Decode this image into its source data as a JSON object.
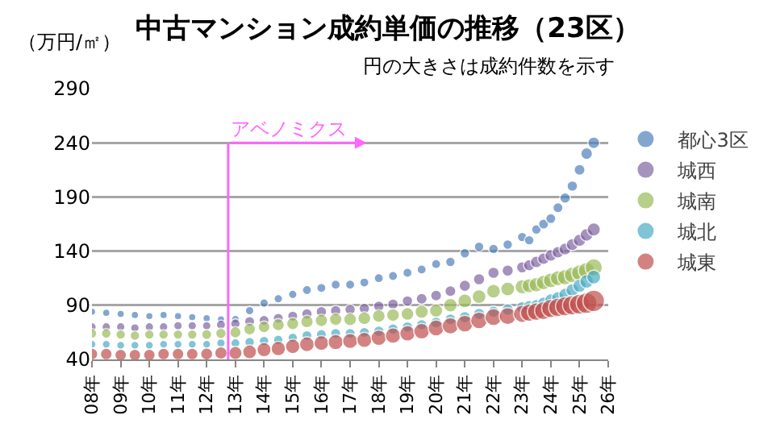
{
  "chart_data": {
    "type": "bubble",
    "title": "中古マンション成約単価の推移（23区）",
    "ylabel": "（万円/㎡）",
    "annotations": [
      "円の大きさは成約件数を示す"
    ],
    "x": [
      "2008-01",
      "2008-07",
      "2009-01",
      "2009-07",
      "2010-01",
      "2010-07",
      "2011-01",
      "2011-07",
      "2012-01",
      "2012-07",
      "2013-01",
      "2013-07",
      "2014-01",
      "2014-07",
      "2015-01",
      "2015-07",
      "2016-01",
      "2016-07",
      "2017-01",
      "2017-07",
      "2018-01",
      "2018-07",
      "2019-01",
      "2019-07",
      "2020-01",
      "2020-07",
      "2021-01",
      "2021-07",
      "2022-01",
      "2022-07",
      "2023-01",
      "2023-04",
      "2023-07",
      "2023-10",
      "2024-01",
      "2024-04",
      "2024-07",
      "2024-10",
      "2025-01",
      "2025-04",
      "2025-07"
    ],
    "series": [
      {
        "name": "都心3区",
        "color": "#4f81bd",
        "values": [
          84,
          83,
          82,
          81,
          80,
          81,
          80,
          79,
          78,
          77,
          77,
          85,
          92,
          96,
          100,
          104,
          106,
          109,
          109,
          111,
          115,
          117,
          120,
          123,
          128,
          130,
          138,
          144,
          142,
          146,
          153,
          150,
          160,
          165,
          170,
          180,
          189,
          200,
          215,
          230,
          240
        ],
        "sizes": [
          0.12,
          0.12,
          0.12,
          0.12,
          0.12,
          0.12,
          0.12,
          0.12,
          0.12,
          0.12,
          0.14,
          0.16,
          0.16,
          0.16,
          0.16,
          0.18,
          0.18,
          0.18,
          0.18,
          0.18,
          0.18,
          0.18,
          0.18,
          0.18,
          0.18,
          0.2,
          0.2,
          0.2,
          0.2,
          0.2,
          0.2,
          0.2,
          0.2,
          0.22,
          0.22,
          0.22,
          0.24,
          0.24,
          0.26,
          0.3,
          0.3
        ]
      },
      {
        "name": "城西",
        "color": "#8064a2",
        "values": [
          70,
          70,
          70,
          69,
          70,
          70,
          71,
          71,
          71,
          72,
          73,
          75,
          76,
          78,
          80,
          82,
          84,
          85,
          86,
          87,
          89,
          91,
          94,
          96,
          99,
          103,
          108,
          114,
          120,
          122,
          125,
          127,
          130,
          133,
          136,
          139,
          142,
          146,
          150,
          155,
          160
        ],
        "sizes": [
          0.16,
          0.16,
          0.16,
          0.16,
          0.16,
          0.16,
          0.16,
          0.16,
          0.16,
          0.18,
          0.2,
          0.22,
          0.22,
          0.22,
          0.22,
          0.24,
          0.24,
          0.24,
          0.24,
          0.24,
          0.24,
          0.24,
          0.24,
          0.26,
          0.26,
          0.26,
          0.28,
          0.28,
          0.28,
          0.28,
          0.28,
          0.28,
          0.3,
          0.3,
          0.3,
          0.3,
          0.32,
          0.32,
          0.34,
          0.36,
          0.38
        ]
      },
      {
        "name": "城南",
        "color": "#9bbb59",
        "values": [
          64,
          64,
          63,
          62,
          63,
          63,
          63,
          63,
          63,
          64,
          65,
          68,
          70,
          72,
          73,
          75,
          76,
          77,
          77,
          78,
          80,
          81,
          82,
          84,
          85,
          90,
          94,
          98,
          103,
          105,
          107,
          108,
          109,
          111,
          113,
          115,
          116,
          118,
          120,
          122,
          125
        ],
        "sizes": [
          0.2,
          0.2,
          0.2,
          0.2,
          0.2,
          0.2,
          0.2,
          0.2,
          0.22,
          0.24,
          0.28,
          0.3,
          0.3,
          0.32,
          0.32,
          0.34,
          0.34,
          0.34,
          0.36,
          0.36,
          0.36,
          0.36,
          0.36,
          0.38,
          0.38,
          0.4,
          0.42,
          0.42,
          0.42,
          0.42,
          0.44,
          0.44,
          0.46,
          0.46,
          0.48,
          0.5,
          0.52,
          0.54,
          0.56,
          0.6,
          0.64
        ]
      },
      {
        "name": "城北",
        "color": "#4bacc6",
        "values": [
          54,
          54,
          53,
          53,
          53,
          54,
          54,
          54,
          54,
          55,
          55,
          56,
          57,
          58,
          60,
          62,
          63,
          64,
          64,
          65,
          66,
          68,
          70,
          72,
          74,
          77,
          79,
          82,
          84,
          86,
          88,
          89,
          90,
          92,
          95,
          97,
          100,
          104,
          108,
          112,
          116
        ],
        "sizes": [
          0.14,
          0.14,
          0.14,
          0.14,
          0.14,
          0.14,
          0.14,
          0.14,
          0.14,
          0.16,
          0.18,
          0.2,
          0.2,
          0.2,
          0.2,
          0.22,
          0.22,
          0.22,
          0.22,
          0.22,
          0.24,
          0.24,
          0.24,
          0.24,
          0.26,
          0.26,
          0.28,
          0.28,
          0.28,
          0.28,
          0.3,
          0.3,
          0.3,
          0.32,
          0.32,
          0.34,
          0.34,
          0.36,
          0.38,
          0.4,
          0.42
        ]
      },
      {
        "name": "城東",
        "color": "#c0504d",
        "values": [
          45,
          45,
          44,
          44,
          44,
          45,
          45,
          45,
          45,
          46,
          46,
          47,
          49,
          50,
          52,
          54,
          55,
          56,
          57,
          58,
          60,
          62,
          64,
          66,
          69,
          71,
          73,
          76,
          79,
          80,
          82,
          83,
          84,
          85,
          87,
          88,
          89,
          90,
          91,
          92,
          94
        ],
        "sizes": [
          0.3,
          0.3,
          0.3,
          0.3,
          0.3,
          0.3,
          0.3,
          0.3,
          0.32,
          0.34,
          0.38,
          0.42,
          0.44,
          0.46,
          0.46,
          0.48,
          0.48,
          0.5,
          0.5,
          0.5,
          0.52,
          0.52,
          0.52,
          0.54,
          0.56,
          0.58,
          0.6,
          0.6,
          0.62,
          0.62,
          0.64,
          0.66,
          0.68,
          0.7,
          0.72,
          0.74,
          0.78,
          0.82,
          0.86,
          0.92,
          1
        ]
      }
    ],
    "xlim": [
      "2008",
      "2026"
    ],
    "xticks": [
      {
        "value": "2008",
        "label": "08年"
      },
      {
        "value": "2009",
        "label": "09年"
      },
      {
        "value": "2010",
        "label": "10年"
      },
      {
        "value": "2011",
        "label": "11年"
      },
      {
        "value": "2012",
        "label": "12年"
      },
      {
        "value": "2013",
        "label": "13年"
      },
      {
        "value": "2014",
        "label": "14年"
      },
      {
        "value": "2015",
        "label": "15年"
      },
      {
        "value": "2016",
        "label": "16年"
      },
      {
        "value": "2017",
        "label": "17年"
      },
      {
        "value": "2018",
        "label": "18年"
      },
      {
        "value": "2019",
        "label": "19年"
      },
      {
        "value": "2020",
        "label": "20年"
      },
      {
        "value": "2021",
        "label": "21年"
      },
      {
        "value": "2022",
        "label": "22年"
      },
      {
        "value": "2023",
        "label": "23年"
      },
      {
        "value": "2024",
        "label": "24年"
      },
      {
        "value": "2025",
        "label": "25年"
      },
      {
        "value": "2026",
        "label": "26年"
      }
    ],
    "ylim": [
      40,
      290
    ],
    "yticks": [
      40,
      90,
      140,
      190,
      240,
      290
    ],
    "ref_lines": [
      {
        "axis": "x",
        "value": "2012-10",
        "label": "アベノミクス",
        "color": "#ff66ff"
      }
    ],
    "grid": "y",
    "legend": "right",
    "marker": "circle"
  }
}
